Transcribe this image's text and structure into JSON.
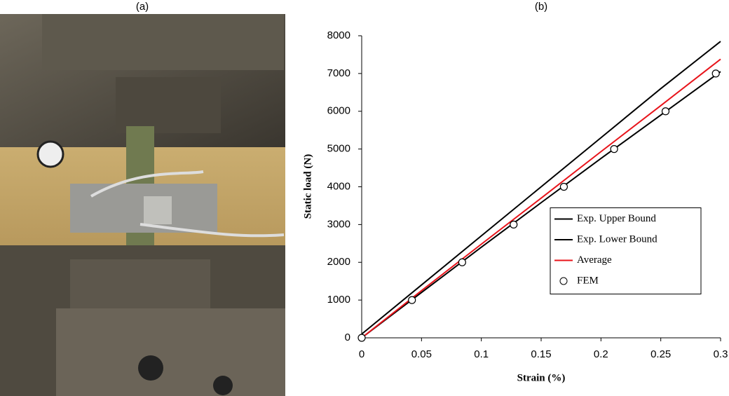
{
  "panel_labels": [
    "(a)",
    "(b)"
  ],
  "chart_data": {
    "type": "line",
    "x_label": "Strain (%)",
    "y_label": "Static load (N)",
    "xlim": [
      0,
      0.3
    ],
    "xticks": [
      0,
      0.05,
      0.1,
      0.15,
      0.2,
      0.25,
      0.3
    ],
    "ylim": [
      0,
      8000
    ],
    "yticks": [
      0,
      1000,
      2000,
      3000,
      4000,
      5000,
      6000,
      7000,
      8000
    ],
    "legend": "right",
    "series": [
      {
        "name": "Exp. Upper Bound",
        "color": "#000000",
        "style": "line",
        "x": [
          0,
          0.05,
          0.1,
          0.15,
          0.2,
          0.25,
          0.3
        ],
        "values": [
          100,
          1400,
          2700,
          4000,
          5300,
          6600,
          7850
        ]
      },
      {
        "name": "Exp. Lower Bound",
        "color": "#000000",
        "style": "line",
        "x": [
          0,
          0.05,
          0.1,
          0.15,
          0.2,
          0.25,
          0.3
        ],
        "values": [
          0,
          1200,
          2400,
          3580,
          4750,
          5900,
          7050
        ]
      },
      {
        "name": "Average",
        "color": "#e8141b",
        "style": "line",
        "x": [
          0,
          0.05,
          0.1,
          0.15,
          0.2,
          0.25,
          0.3
        ],
        "values": [
          0,
          1250,
          2480,
          3700,
          4930,
          6150,
          7380
        ]
      },
      {
        "name": "FEM",
        "color": "#000000",
        "style": "marker",
        "x": [
          0,
          0.042,
          0.084,
          0.127,
          0.169,
          0.211,
          0.254,
          0.296
        ],
        "values": [
          0,
          1000,
          2000,
          3000,
          4000,
          5000,
          6000,
          7000
        ]
      }
    ]
  }
}
